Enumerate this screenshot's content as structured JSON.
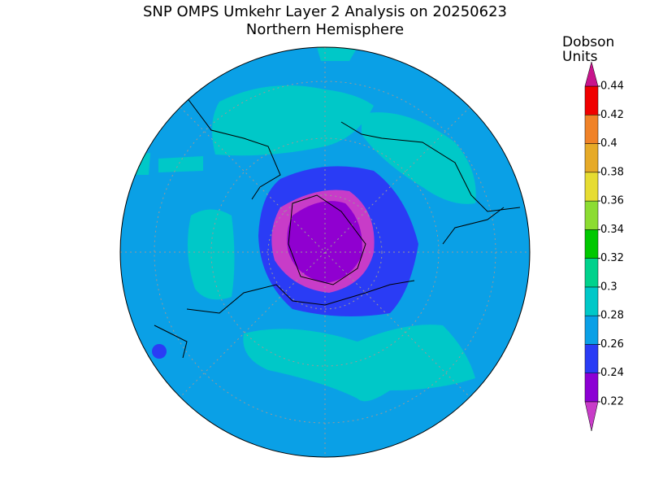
{
  "header": {
    "title": "SNP OMPS Umkehr Layer 2 Analysis on 20250623",
    "subtitle": "Northern Hemisphere"
  },
  "colorbar": {
    "label_lines": [
      "Dobson",
      "Units"
    ],
    "ticks": [
      0.22,
      0.24,
      0.26,
      0.28,
      0.3,
      0.32,
      0.34,
      0.36,
      0.38,
      0.4,
      0.42,
      0.44
    ],
    "colors": [
      "#8c00d4",
      "#2a3cf5",
      "#0aa0e6",
      "#00c8c8",
      "#00d28c",
      "#00c800",
      "#8cdc32",
      "#e6dc32",
      "#e6aa28",
      "#f08228",
      "#f00000"
    ],
    "under_color": "#c83cc8",
    "over_color": "#c8148c"
  }
}
